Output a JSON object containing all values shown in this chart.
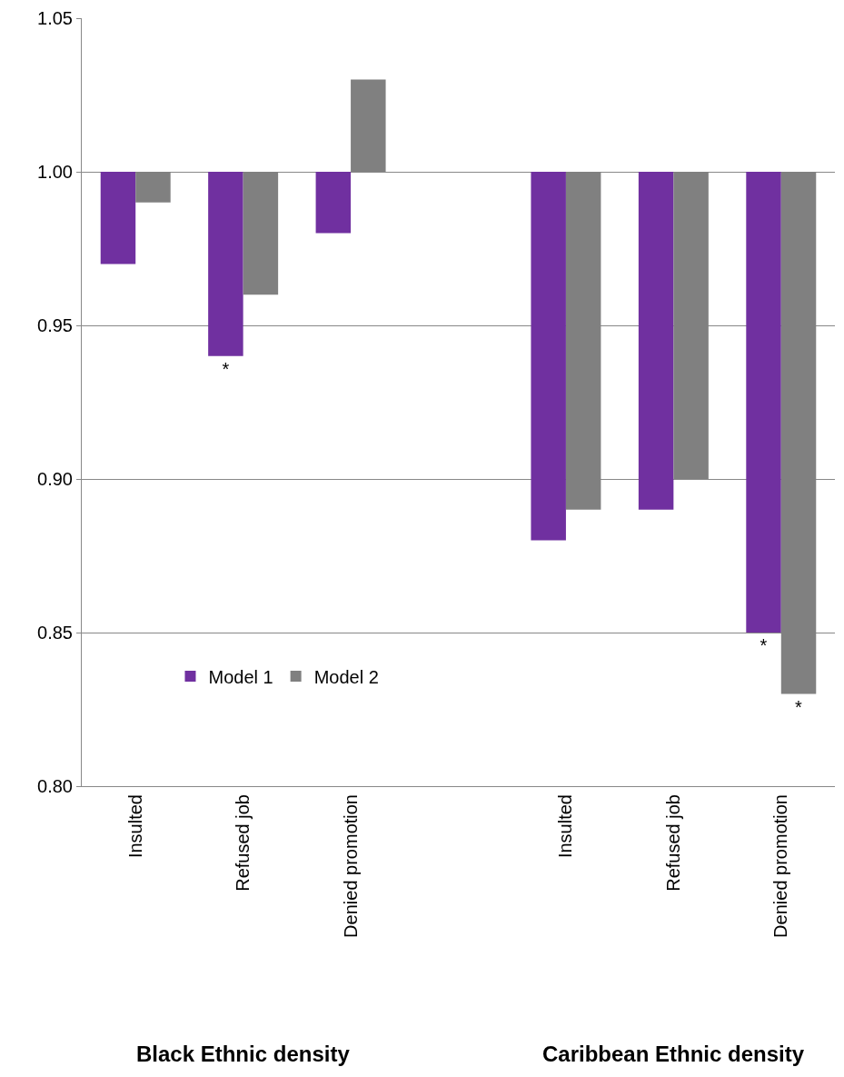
{
  "chart_data": {
    "type": "bar",
    "categories": [
      "Insulted",
      "Refused job",
      "Denied promotion",
      null,
      "Insulted",
      "Refused job",
      "Denied promotion"
    ],
    "series": [
      {
        "name": "Model 1",
        "color": "#7030a0",
        "base": [
          1,
          1,
          1,
          null,
          1,
          1,
          1
        ],
        "values": [
          -0.03,
          -0.06,
          -0.02,
          null,
          -0.12,
          -0.11,
          -0.15
        ],
        "value_labels": [
          null,
          "*",
          null,
          null,
          null,
          null,
          "*"
        ]
      },
      {
        "name": "Model 2",
        "color": "#808080",
        "base": [
          1,
          1,
          1,
          null,
          1,
          1,
          1
        ],
        "values": [
          -0.01,
          -0.04,
          0.03,
          null,
          -0.11,
          -0.1,
          -0.17
        ],
        "value_labels": [
          null,
          null,
          null,
          null,
          null,
          null,
          "*"
        ]
      }
    ],
    "ylim": [
      0.8,
      1.05
    ],
    "yticks": [
      {
        "value": 0.8,
        "label": "0.80"
      },
      {
        "value": 0.85,
        "label": "0.85"
      },
      {
        "value": 0.9,
        "label": "0.90"
      },
      {
        "value": 0.95,
        "label": "0.95"
      },
      {
        "value": 1.0,
        "label": "1.00"
      },
      {
        "value": 1.05,
        "label": "1.05"
      }
    ],
    "grid": "y",
    "legend": "bottom left",
    "annotations": [
      "Black Ethnic density",
      "Caribbean Ethnic density"
    ]
  }
}
